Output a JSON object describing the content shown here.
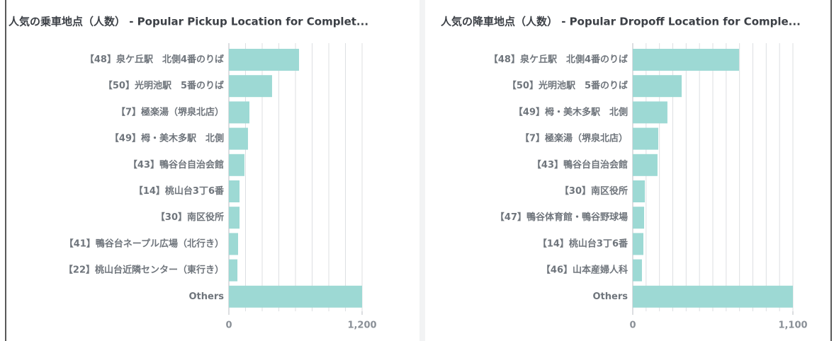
{
  "chart_data": [
    {
      "type": "barh",
      "title": "人気の乗車地点（人数） - Popular Pickup Location for Complet...",
      "categories": [
        "【48】泉ケ丘駅　北側4番のりば",
        "【50】光明池駅　5番のりば",
        "【7】極楽湯（堺泉北店）",
        "【49】栂・美木多駅　北側",
        "【43】鴨谷台自治会館",
        "【14】桃山台3丁6番",
        "【30】南区役所",
        "【41】鴨谷台ネープル広場（北行き）",
        "【22】桃山台近隣センター（東行き）",
        "Others"
      ],
      "values": [
        632,
        389,
        185,
        172,
        140,
        96,
        96,
        83,
        77,
        1200
      ],
      "color": "#9dd9d4",
      "xlim": [
        0,
        1200
      ],
      "xticks": [
        0,
        {
          "value": 1200,
          "label": "1,200"
        }
      ],
      "grid_divisions": 8
    },
    {
      "type": "barh",
      "title": "人気の降車地点（人数） - Popular Dropoff Location for Comple...",
      "categories": [
        "【48】泉ケ丘駅　北側4番のりば",
        "【50】光明池駅　5番のりば",
        "【49】栂・美木多駅　北側",
        "【7】極楽湯（堺泉北店）",
        "【43】鴨谷台自治会館",
        "【30】南区役所",
        "【47】鴨谷体育館・鴨谷野球場",
        "【14】桃山台3丁6番",
        "【46】山本産婦人科",
        "Others"
      ],
      "values": [
        730,
        336,
        238,
        175,
        170,
        83,
        78,
        73,
        63,
        1100
      ],
      "color": "#9dd9d4",
      "xlim": [
        0,
        1100
      ],
      "xticks": [
        0,
        {
          "value": 1100,
          "label": "1,100"
        }
      ],
      "grid_divisions": 12
    }
  ]
}
